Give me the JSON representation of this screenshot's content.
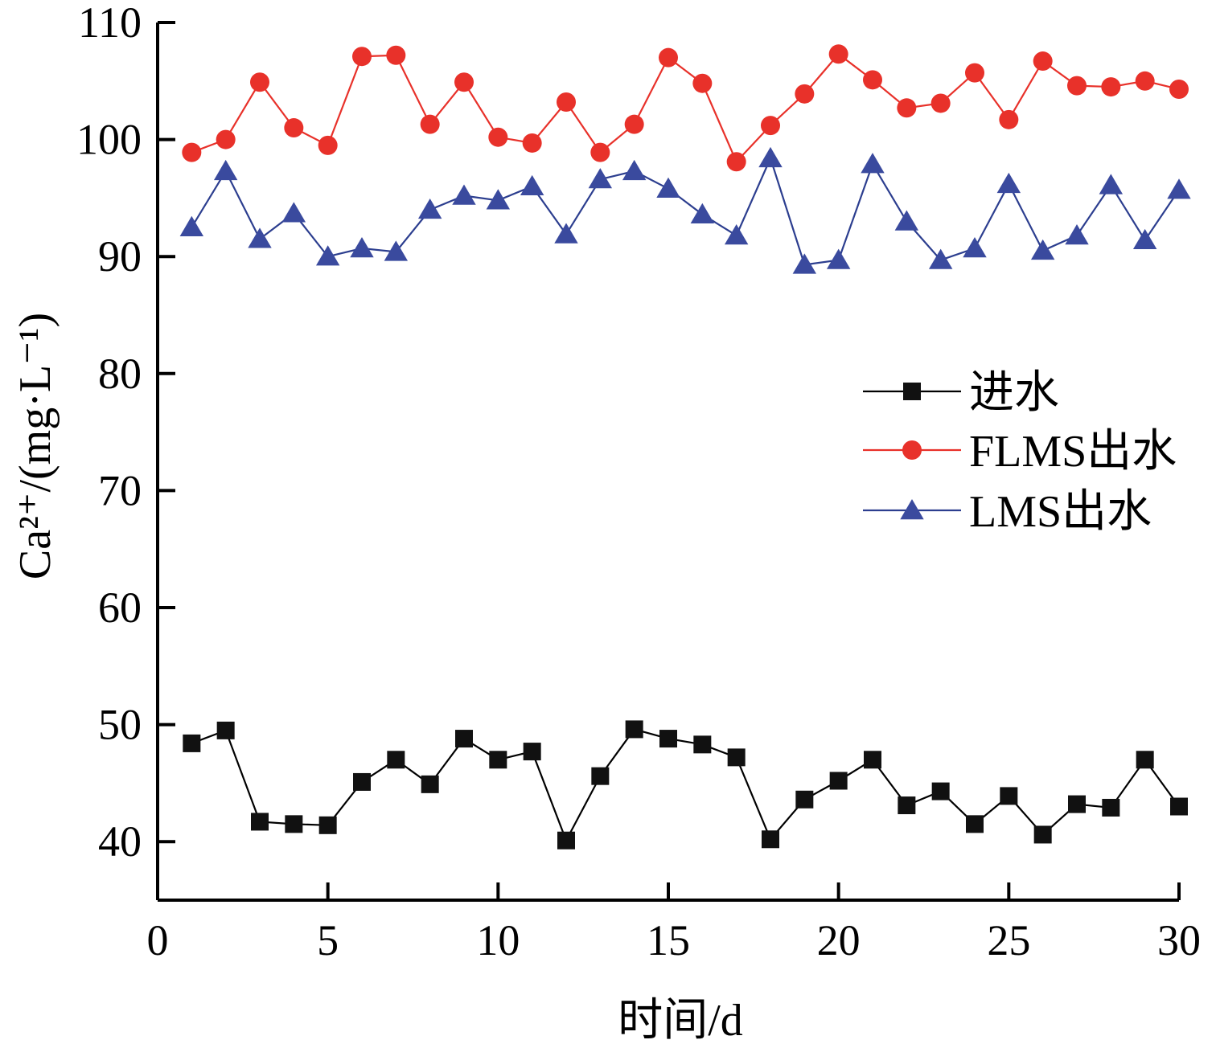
{
  "colors": {
    "series_1": "#000000",
    "series_2": "#e8312a",
    "series_3": "#2c3e8f",
    "marker_1": "#111111",
    "marker_2": "#e8312a",
    "marker_3": "#3a4a9e"
  },
  "chart_data": {
    "type": "line",
    "xlabel": "时间/d",
    "ylabel": "Ca²⁺/(mg·L⁻¹)",
    "xlim": [
      0,
      30
    ],
    "ylim": [
      35,
      110
    ],
    "x_ticks": [
      "0",
      "5",
      "10",
      "15",
      "20",
      "25",
      "30"
    ],
    "y_ticks": [
      "40",
      "50",
      "60",
      "70",
      "80",
      "90",
      "100",
      "110"
    ],
    "x": [
      1,
      2,
      3,
      4,
      5,
      6,
      7,
      8,
      9,
      10,
      11,
      12,
      13,
      14,
      15,
      16,
      17,
      18,
      19,
      20,
      21,
      22,
      23,
      24,
      25,
      26,
      27,
      28,
      29,
      30
    ],
    "series": [
      {
        "name": "进水",
        "marker": "square",
        "values": [
          48.4,
          49.5,
          41.7,
          41.5,
          41.4,
          45.1,
          47.0,
          44.9,
          48.8,
          47.0,
          47.7,
          40.1,
          45.6,
          49.6,
          48.8,
          48.3,
          47.2,
          40.2,
          43.6,
          45.2,
          47.0,
          43.1,
          44.3,
          41.5,
          43.9,
          40.6,
          43.2,
          42.9,
          47.0,
          43.0
        ]
      },
      {
        "name": "FLMS出水",
        "marker": "circle",
        "values": [
          98.9,
          100.0,
          104.9,
          101.0,
          99.5,
          107.1,
          107.2,
          101.3,
          104.9,
          100.2,
          99.7,
          103.2,
          98.9,
          101.3,
          107.0,
          104.8,
          98.1,
          101.2,
          103.9,
          107.3,
          105.1,
          102.7,
          103.1,
          105.7,
          101.7,
          106.7,
          104.6,
          104.5,
          105.0,
          104.3
        ]
      },
      {
        "name": "LMS出水",
        "marker": "triangle",
        "values": [
          92.5,
          97.3,
          91.5,
          93.7,
          90.0,
          90.7,
          90.4,
          94.0,
          95.2,
          94.8,
          96.0,
          91.9,
          96.6,
          97.3,
          95.8,
          93.6,
          91.8,
          98.4,
          89.3,
          89.7,
          97.9,
          93.0,
          89.7,
          90.7,
          96.2,
          90.5,
          91.8,
          96.1,
          91.4,
          95.7
        ]
      }
    ],
    "legend_position": "middle-right",
    "grid": false
  }
}
